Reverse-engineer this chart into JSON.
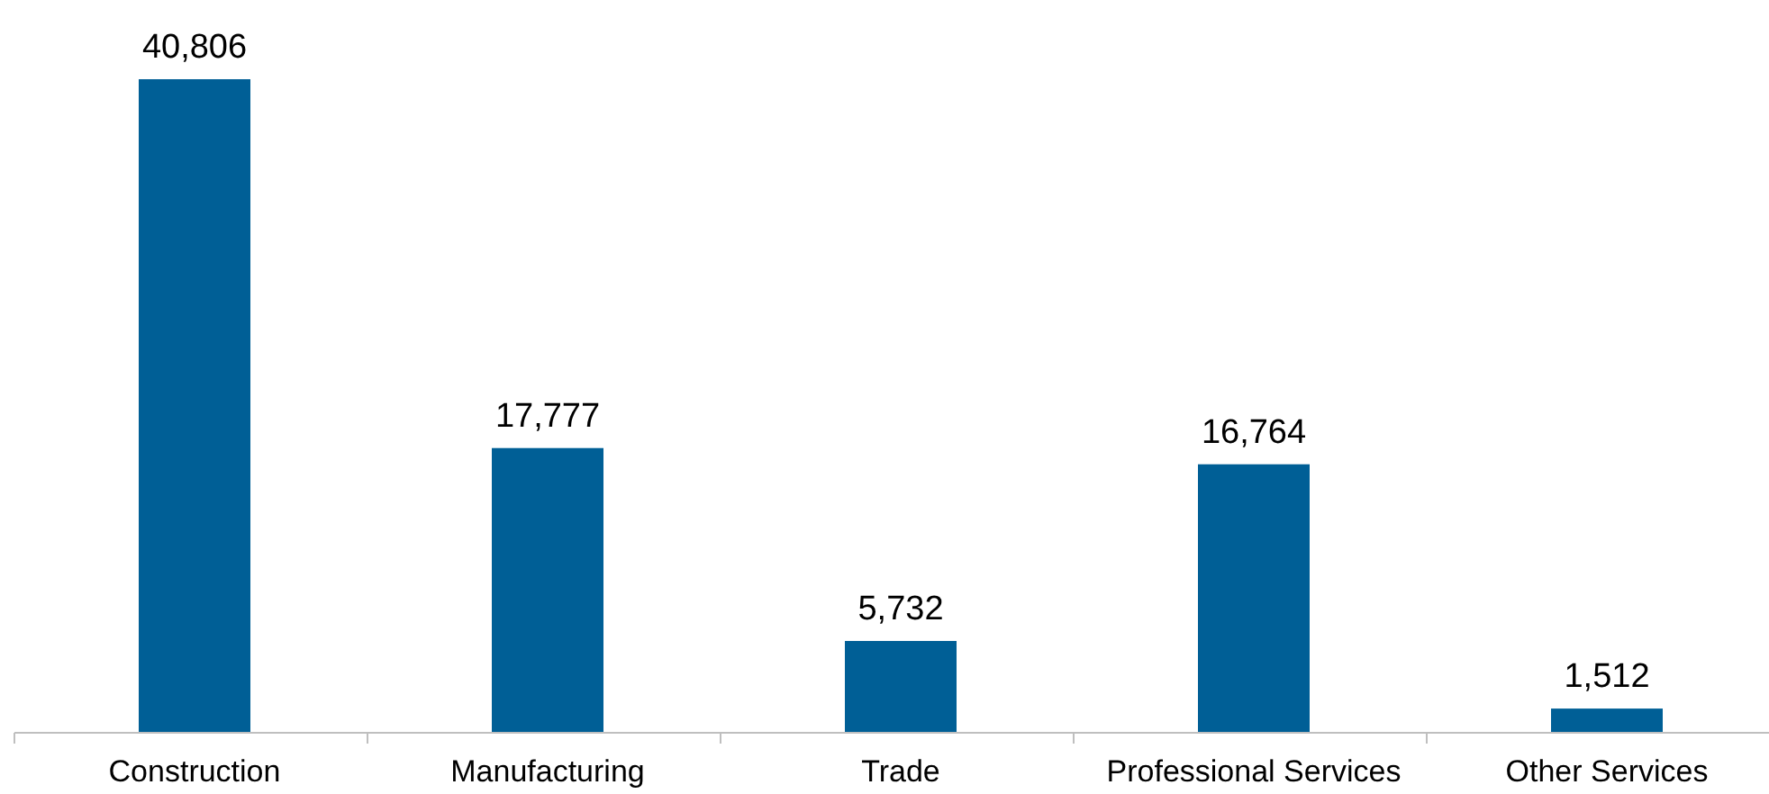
{
  "chart_data": {
    "type": "bar",
    "categories": [
      "Construction",
      "Manufacturing",
      "Trade",
      "Professional Services",
      "Other Services"
    ],
    "values": [
      40806,
      17777,
      5732,
      16764,
      1512
    ],
    "color": "#005f96",
    "value_labels": [
      "40,806",
      "17,777",
      "5,732",
      "16,764",
      "1,512"
    ]
  }
}
